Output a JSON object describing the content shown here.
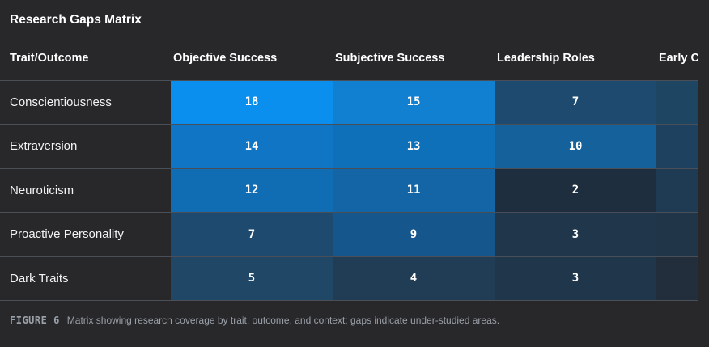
{
  "title": "Research Gaps Matrix",
  "colors": {
    "background": "#28282b",
    "row_border": "#4a4f57",
    "text_primary": "#ffffff",
    "text_muted": "#9aa0a8",
    "heat_high": "#0b8fef",
    "heat_low": "#1f2e3e"
  },
  "table": {
    "corner_header": "Trait/Outcome",
    "column_headers": [
      "Objective Success",
      "Subjective Success",
      "Leadership Roles",
      "Early Ca"
    ],
    "rows": [
      {
        "label": "Conscientiousness",
        "cells": [
          {
            "value": "18",
            "color": "#0b8fef"
          },
          {
            "value": "15",
            "color": "#1180d1"
          },
          {
            "value": "7",
            "color": "#1d4a6e"
          },
          {
            "value": "",
            "color": "#1e4663"
          }
        ]
      },
      {
        "label": "Extraversion",
        "cells": [
          {
            "value": "14",
            "color": "#0f75c4"
          },
          {
            "value": "13",
            "color": "#0f70ba"
          },
          {
            "value": "10",
            "color": "#15619b"
          },
          {
            "value": "",
            "color": "#1e4160"
          }
        ]
      },
      {
        "label": "Neuroticism",
        "cells": [
          {
            "value": "12",
            "color": "#106cb3"
          },
          {
            "value": "11",
            "color": "#1465a5"
          },
          {
            "value": "2",
            "color": "#1f2e3e"
          },
          {
            "value": "",
            "color": "#1f3b53"
          }
        ]
      },
      {
        "label": "Proactive Personality",
        "cells": [
          {
            "value": "7",
            "color": "#1d4a6e"
          },
          {
            "value": "9",
            "color": "#15578c"
          },
          {
            "value": "3",
            "color": "#20364b"
          },
          {
            "value": "",
            "color": "#213549"
          }
        ]
      },
      {
        "label": "Dark Traits",
        "cells": [
          {
            "value": "5",
            "color": "#214766"
          },
          {
            "value": "4",
            "color": "#213c55"
          },
          {
            "value": "3",
            "color": "#20364b"
          },
          {
            "value": "",
            "color": "#222e3b"
          }
        ]
      }
    ]
  },
  "caption": {
    "tag": "FIGURE 6",
    "text": "Matrix showing research coverage by trait, outcome, and context; gaps indicate under-studied areas."
  },
  "chart_data": {
    "type": "heatmap",
    "title": "Research Gaps Matrix",
    "row_labels": [
      "Conscientiousness",
      "Extraversion",
      "Neuroticism",
      "Proactive Personality",
      "Dark Traits"
    ],
    "column_labels": [
      "Objective Success",
      "Subjective Success",
      "Leadership Roles",
      "Early Ca"
    ],
    "values": [
      [
        18,
        15,
        7,
        null
      ],
      [
        14,
        13,
        10,
        null
      ],
      [
        12,
        11,
        2,
        null
      ],
      [
        7,
        9,
        3,
        null
      ],
      [
        5,
        4,
        3,
        null
      ]
    ],
    "notes": "Fourth column is clipped at the right edge of the viewport; its cell values are not visible.",
    "color_scale": {
      "low": "#1f2e3e",
      "high": "#0b8fef",
      "domain": [
        2,
        18
      ]
    },
    "legend": "none",
    "caption": "FIGURE 6  Matrix showing research coverage by trait, outcome, and context; gaps indicate under-studied areas."
  }
}
